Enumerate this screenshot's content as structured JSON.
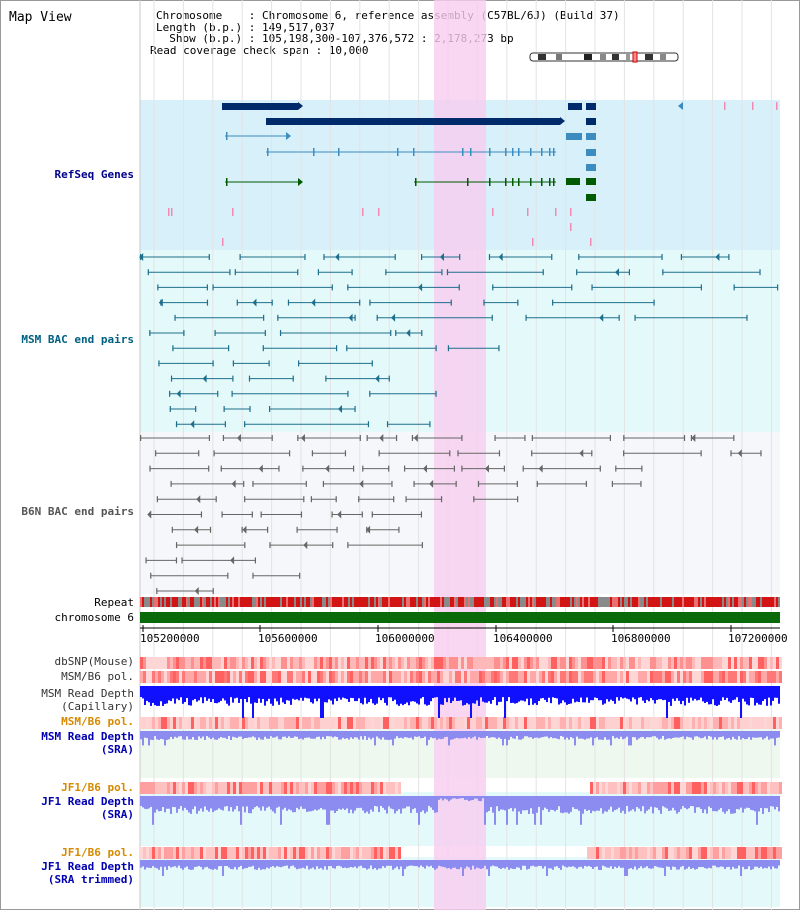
{
  "view": {
    "title": "Map View",
    "header": {
      "line1": "Chromosome    : Chromosome 6, reference assembly (C57BL/6J) (Build 37)",
      "line2": "Length (b.p.) : 149,517,037",
      "line3": "  Show (b.p.) : 105,198,300-107,376,572 : 2,178,273 bp",
      "line4": "Read coverage check span : 10,000"
    }
  },
  "tracks": {
    "refseq": "RefSeq Genes",
    "msm_bac": "MSM BAC end pairs",
    "b6n_bac": "B6N BAC end pairs",
    "repeat": "Repeat",
    "chromosome": "chromosome 6",
    "dbsnp": "dbSNP(Mouse)",
    "msm_b6_pol_1": "MSM/B6 pol.",
    "msm_read_depth_cap_1": "MSM Read Depth",
    "msm_read_depth_cap_2": "(Capillary)",
    "msm_b6_pol_2": "MSM/B6 pol.",
    "msm_read_depth_sra_1": "MSM Read Depth",
    "msm_read_depth_sra_2": "(SRA)",
    "jf1_b6_pol_1": "JF1/B6 pol.",
    "jf1_read_depth_sra_1": "JF1 Read Depth",
    "jf1_read_depth_sra_2": "(SRA)",
    "jf1_b6_pol_2": "JF1/B6 pol.",
    "jf1_read_depth_trim_1": "JF1 Read Depth",
    "jf1_read_depth_trim_2": "(SRA trimmed)"
  },
  "axis": {
    "ticks": [
      "105200000",
      "105600000",
      "106000000",
      "106400000",
      "106800000",
      "107200000"
    ]
  },
  "colors": {
    "refseq_bg": "#d8f0fa",
    "msm_bg": "#e4fafa",
    "b6n_bg": "#f6f7fa",
    "highlight": "#f8cdf0",
    "gene_dark": "#002a6a",
    "gene_mid": "#3c8cc0",
    "gene_green": "#005a00",
    "msm_line": "#1e6e8c",
    "b6n_line": "#666666",
    "chromosome_bar": "#0a6a0a",
    "depth_capillary": "#1010ff",
    "depth_sra": "#8c8cf0"
  }
}
